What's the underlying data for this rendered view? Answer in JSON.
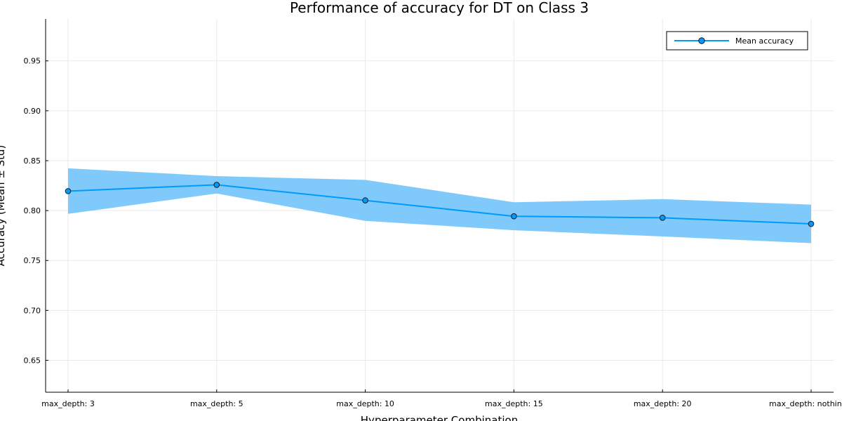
{
  "chart_data": {
    "type": "line",
    "title": "Performance of accuracy for DT on Class 3",
    "xlabel": "Hyperparameter Combination",
    "ylabel": "Accuracy (Mean ± Std)",
    "categories": [
      "max_depth: 3",
      "max_depth: 5",
      "max_depth: 10",
      "max_depth: 15",
      "max_depth: 20",
      "max_depth: nothing"
    ],
    "series": [
      {
        "name": "Mean accuracy",
        "values": [
          0.8195,
          0.8258,
          0.8102,
          0.7943,
          0.7928,
          0.7867
        ],
        "std": [
          0.0228,
          0.0087,
          0.0205,
          0.014,
          0.0187,
          0.0193
        ]
      }
    ],
    "ylim": [
      0.618,
      0.992
    ],
    "yticks": [
      "0.65",
      "0.70",
      "0.75",
      "0.80",
      "0.85",
      "0.90",
      "0.95"
    ],
    "grid": true,
    "legend_position": "top-right",
    "colors": {
      "line": "#009AFA",
      "band": "#7FCAFA",
      "marker_edge": "#1a1a1a",
      "grid": "#EAEAEA"
    }
  }
}
